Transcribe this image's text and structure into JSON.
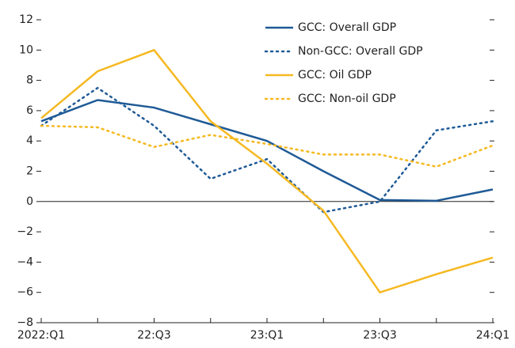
{
  "chart_data": {
    "type": "line",
    "categories": [
      "2022:Q1",
      null,
      "22:Q3",
      null,
      "23:Q1",
      null,
      "23:Q3",
      null,
      "24:Q1"
    ],
    "series": [
      {
        "name": "GCC: Overall GDP",
        "color": "#1f5a96",
        "dash": "solid",
        "values": [
          5.3,
          6.7,
          6.2,
          5.1,
          4.0,
          2.0,
          0.1,
          0.05,
          0.8
        ]
      },
      {
        "name": "Non-GCC: Overall GDP",
        "color": "#1f5a96",
        "dash": "dotted",
        "values": [
          5.0,
          7.5,
          5.0,
          1.5,
          2.8,
          -0.7,
          0.0,
          4.7,
          5.3
        ]
      },
      {
        "name": "GCC: Oil GDP",
        "color": "#f5b922",
        "dash": "solid",
        "values": [
          5.5,
          8.6,
          10.0,
          5.3,
          2.5,
          -0.6,
          -6.0,
          -4.8,
          -3.7
        ]
      },
      {
        "name": "GCC: Non-oil GDP",
        "color": "#f5b922",
        "dash": "dotted",
        "values": [
          5.0,
          4.9,
          3.6,
          4.4,
          3.8,
          3.1,
          3.1,
          2.3,
          3.7
        ]
      }
    ],
    "ylim": [
      -8,
      12
    ],
    "yticks": [
      {
        "value": -8,
        "label": "−8"
      },
      {
        "value": -6,
        "label": "−6"
      },
      {
        "value": -4,
        "label": "−4"
      },
      {
        "value": -2,
        "label": "−2"
      },
      0,
      2,
      4,
      6,
      8,
      10,
      12
    ],
    "legend": "upper right"
  }
}
